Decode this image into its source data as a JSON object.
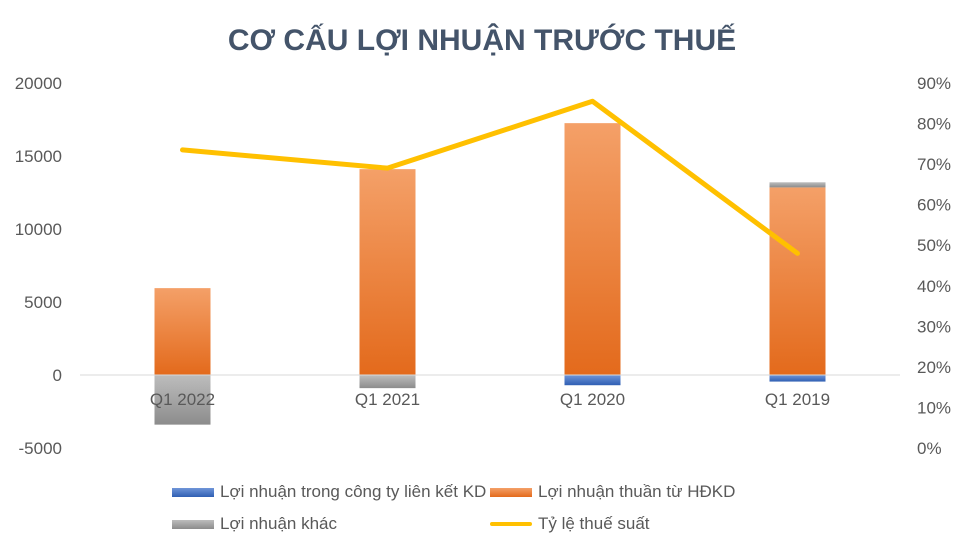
{
  "chart_data": {
    "type": "bar",
    "stacked": true,
    "title": "CƠ CẤU LỢI NHUẬN TRƯỚC THUẾ",
    "categories": [
      "Q1 2022",
      "Q1 2021",
      "Q1 2020",
      "Q1 2019"
    ],
    "y_left": {
      "min": -5000,
      "max": 20000,
      "ticks": [
        "-5000",
        "0",
        "5000",
        "10000",
        "15000",
        "20000"
      ],
      "tick_values": [
        -5000,
        0,
        5000,
        10000,
        15000,
        20000
      ]
    },
    "y_right": {
      "min": 0,
      "max": 0.9,
      "ticks": [
        "0%",
        "10%",
        "20%",
        "30%",
        "40%",
        "50%",
        "60%",
        "70%",
        "80%",
        "90%"
      ],
      "tick_values": [
        0,
        0.1,
        0.2,
        0.3,
        0.4,
        0.5,
        0.6,
        0.7,
        0.8,
        0.9
      ]
    },
    "grid": false,
    "legend_position": "bottom",
    "series": [
      {
        "name": "Lợi nhuận trong công ty liên kết KD",
        "kind": "bar",
        "axis": "left",
        "color": "#4472c4",
        "values": [
          0,
          0,
          -700,
          -450
        ]
      },
      {
        "name": "Lợi nhuận thuần từ HĐKD",
        "kind": "bar",
        "axis": "left",
        "color": "#ed7d31",
        "values": [
          5950,
          14100,
          17250,
          12850
        ]
      },
      {
        "name": "Lợi nhuận khác",
        "kind": "bar",
        "axis": "left",
        "color": "#a5a5a5",
        "values": [
          -3400,
          -900,
          0,
          350
        ]
      },
      {
        "name": "Tỷ lệ thuế suất",
        "kind": "line",
        "axis": "right",
        "color": "#ffc000",
        "values": [
          0.735,
          0.69,
          0.855,
          0.48
        ]
      }
    ]
  }
}
